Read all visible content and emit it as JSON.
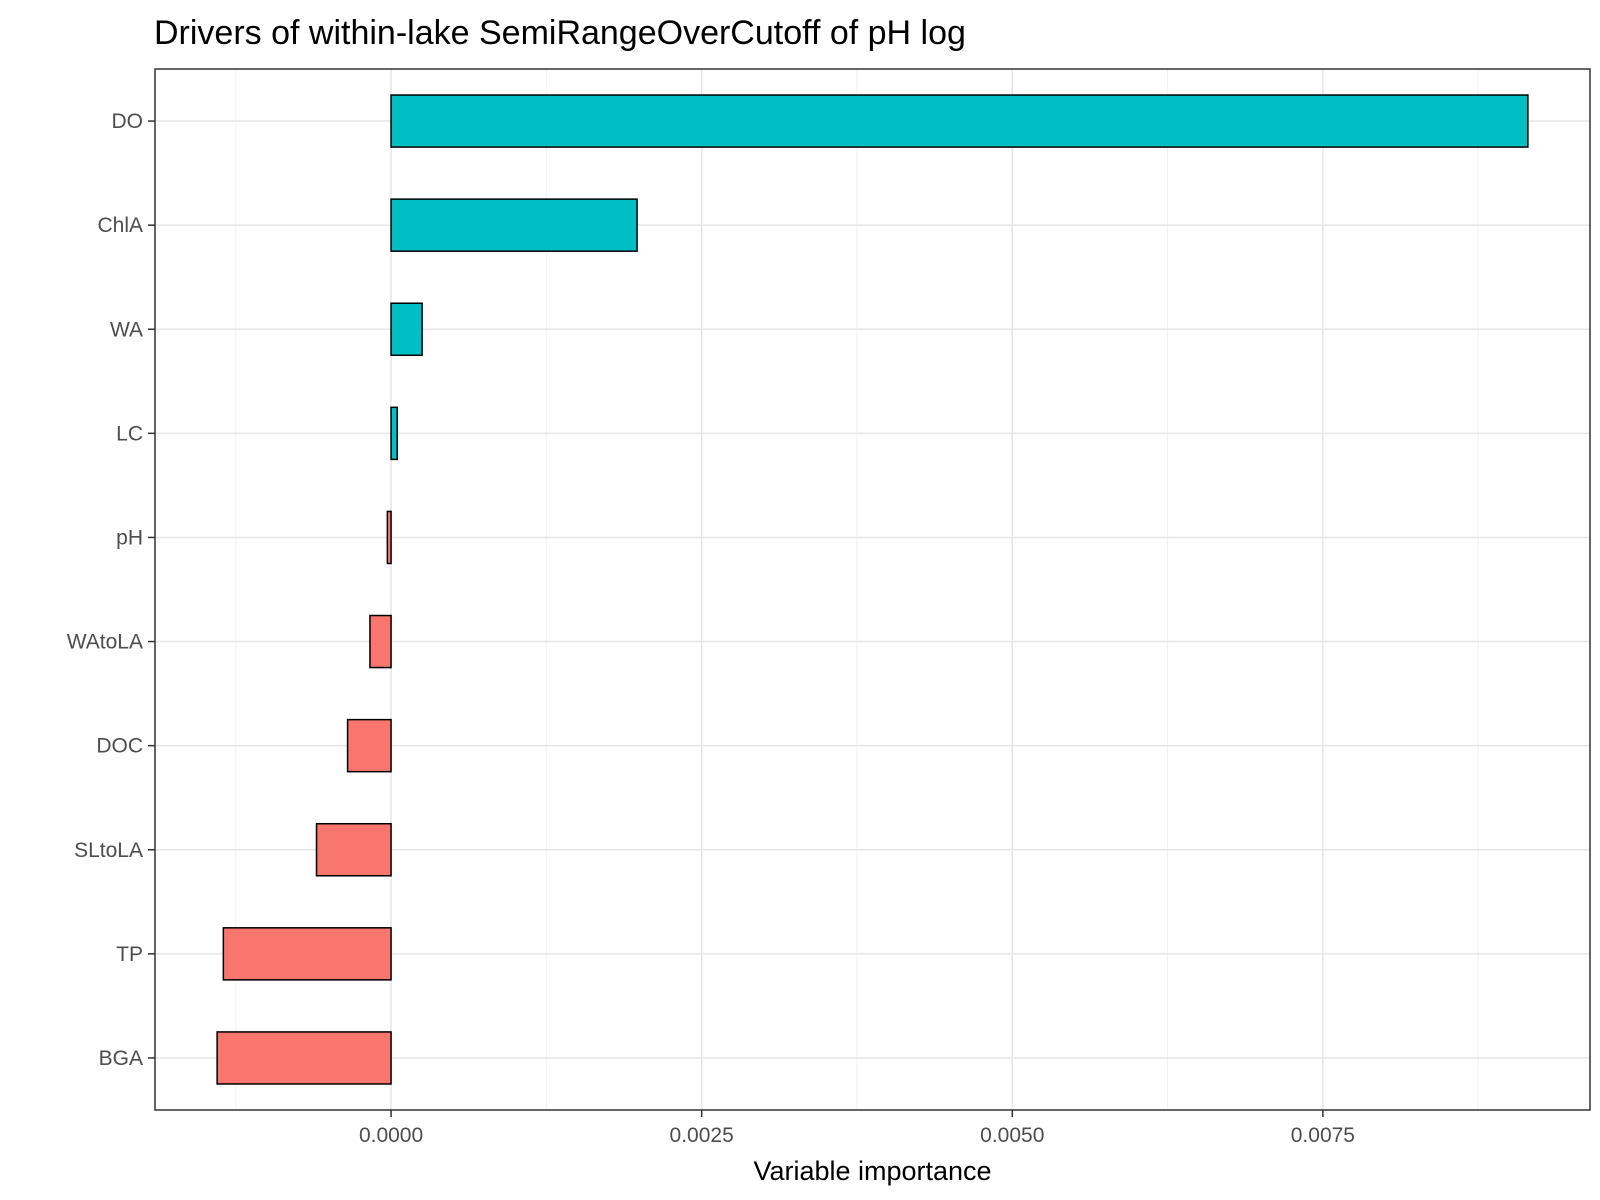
{
  "chart_data": {
    "type": "bar",
    "orientation": "horizontal",
    "title": "Drivers of within-lake SemiRangeOverCutoff of pH log",
    "xlabel": "Variable importance",
    "ylabel": "",
    "categories": [
      "DO",
      "ChlA",
      "WA",
      "LC",
      "pH",
      "WAtoLA",
      "DOC",
      "SLtoLA",
      "TP",
      "BGA"
    ],
    "values": [
      0.00915,
      0.00198,
      0.00025,
      5e-05,
      -3e-05,
      -0.00017,
      -0.00035,
      -0.0006,
      -0.00135,
      -0.0014
    ],
    "xlim": [
      -0.0019,
      0.00965
    ],
    "xticks": [
      0.0,
      0.0025,
      0.005,
      0.0075
    ],
    "xtick_labels": [
      "0.0000",
      "0.0025",
      "0.0050",
      "0.0075"
    ],
    "colors": {
      "positive": "#00BFC4",
      "negative": "#F8766D",
      "bar_border": "#000000"
    },
    "grid": true,
    "legend": "none"
  }
}
